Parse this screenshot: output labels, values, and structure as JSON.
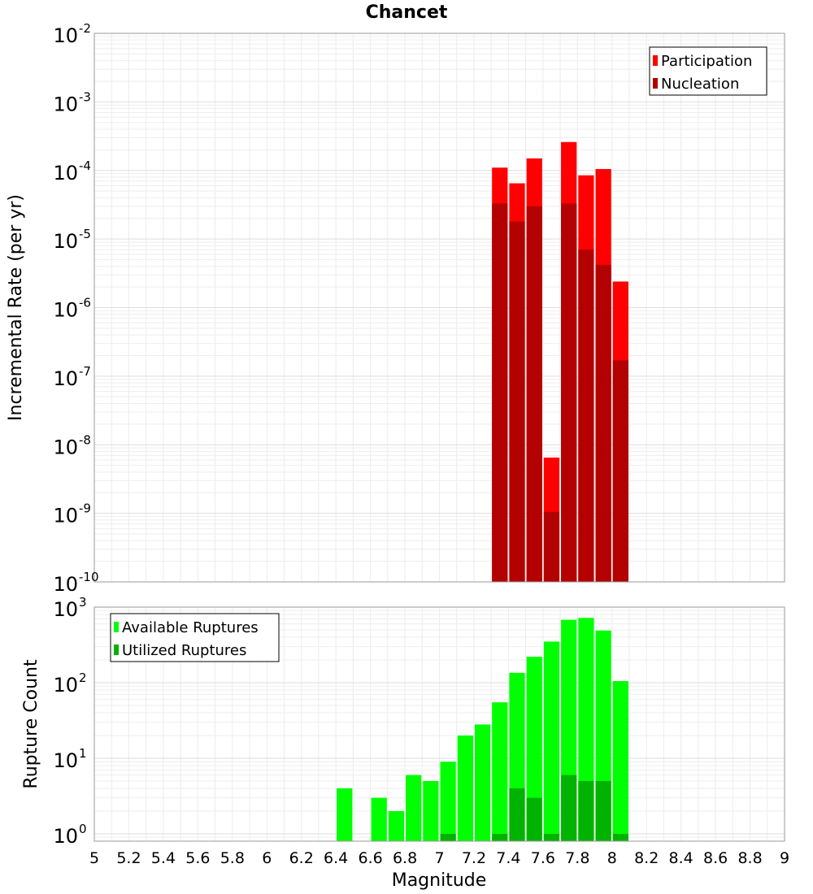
{
  "chart_data": {
    "title": "Chancet",
    "xlabel": "Magnitude",
    "xlim": [
      5,
      9
    ],
    "xticks": [
      "5",
      "5.2",
      "5.4",
      "5.6",
      "5.8",
      "6",
      "6.2",
      "6.4",
      "6.6",
      "6.8",
      "7",
      "7.2",
      "7.4",
      "7.6",
      "7.8",
      "8",
      "8.2",
      "8.4",
      "8.6",
      "8.8",
      "9"
    ],
    "bar_width": 0.1,
    "panels": [
      {
        "type": "bar",
        "ylabel": "Incremental Rate (per yr)",
        "yscale": "log",
        "ylim": [
          1e-10,
          0.01
        ],
        "ytick_exponents": [
          "-10",
          "-9",
          "-8",
          "-7",
          "-6",
          "-5",
          "-4",
          "-3",
          "-2"
        ],
        "legend_position": "top-right",
        "series": [
          {
            "name": "Participation",
            "color": "#ff0000",
            "x": [
              7.35,
              7.45,
              7.55,
              7.65,
              7.75,
              7.85,
              7.95,
              8.05
            ],
            "values": [
              0.00011,
              6.5e-05,
              0.00015,
              6.5e-09,
              0.00026,
              8.5e-05,
              0.000105,
              2.4e-06
            ]
          },
          {
            "name": "Nucleation",
            "color": "#b30000",
            "x": [
              7.35,
              7.45,
              7.55,
              7.65,
              7.75,
              7.85,
              7.95,
              8.05
            ],
            "values": [
              3.3e-05,
              1.8e-05,
              3e-05,
              1.05e-09,
              3.3e-05,
              7e-06,
              4.2e-06,
              1.7e-07
            ]
          }
        ]
      },
      {
        "type": "bar",
        "ylabel": "Rupture Count",
        "yscale": "log",
        "ylim": [
          0.8,
          1000
        ],
        "ytick_exponents": [
          "0",
          "1",
          "2",
          "3"
        ],
        "legend_position": "top-left",
        "series": [
          {
            "name": "Available Ruptures",
            "color": "#00ff00",
            "x": [
              6.45,
              6.65,
              6.75,
              6.85,
              6.95,
              7.05,
              7.15,
              7.25,
              7.35,
              7.45,
              7.55,
              7.65,
              7.75,
              7.85,
              7.95,
              8.05
            ],
            "values": [
              4,
              3,
              2,
              6,
              5,
              9,
              20,
              28,
              55,
              135,
              220,
              350,
              680,
              720,
              490,
              105
            ]
          },
          {
            "name": "Utilized Ruptures",
            "color": "#00b300",
            "x": [
              7.05,
              7.35,
              7.45,
              7.55,
              7.65,
              7.75,
              7.85,
              7.95,
              8.05
            ],
            "values": [
              1,
              1,
              4,
              3,
              1,
              6,
              5,
              5,
              1
            ]
          }
        ]
      }
    ]
  }
}
